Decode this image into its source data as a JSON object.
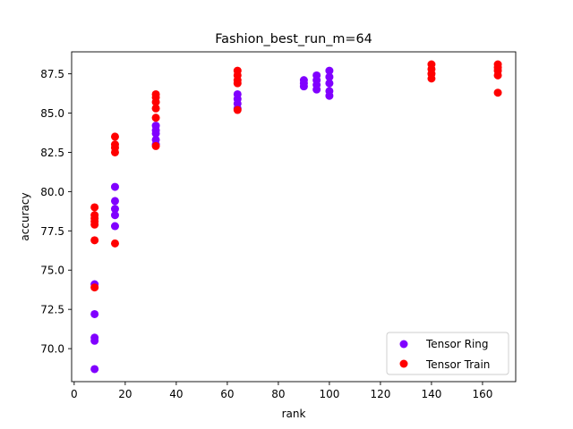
{
  "chart_data": {
    "type": "scatter",
    "title": "Fashion_best_run_m=64",
    "xlabel": "rank",
    "ylabel": "accuracy",
    "xlim": [
      -1,
      173
    ],
    "ylim": [
      67.9,
      88.9
    ],
    "xticks": [
      0,
      20,
      40,
      60,
      80,
      100,
      120,
      140,
      160
    ],
    "yticks": [
      70.0,
      72.5,
      75.0,
      77.5,
      80.0,
      82.5,
      85.0,
      87.5
    ],
    "grid": false,
    "legend_position": "lower right",
    "series": [
      {
        "name": "Tensor Ring",
        "color": "#8000ff",
        "points": [
          [
            8,
            74.1
          ],
          [
            8,
            72.2
          ],
          [
            8,
            70.7
          ],
          [
            8,
            70.5
          ],
          [
            8,
            68.7
          ],
          [
            16,
            80.3
          ],
          [
            16,
            79.4
          ],
          [
            16,
            78.9
          ],
          [
            16,
            78.5
          ],
          [
            16,
            77.8
          ],
          [
            32,
            84.2
          ],
          [
            32,
            83.9
          ],
          [
            32,
            83.7
          ],
          [
            32,
            83.3
          ],
          [
            32,
            83.0
          ],
          [
            64,
            86.2
          ],
          [
            64,
            85.9
          ],
          [
            64,
            85.6
          ],
          [
            64,
            85.3
          ],
          [
            90,
            87.1
          ],
          [
            90,
            86.9
          ],
          [
            90,
            86.7
          ],
          [
            95,
            87.4
          ],
          [
            95,
            87.1
          ],
          [
            95,
            86.8
          ],
          [
            95,
            86.5
          ],
          [
            100,
            87.7
          ],
          [
            100,
            87.3
          ],
          [
            100,
            86.9
          ],
          [
            100,
            86.4
          ],
          [
            100,
            86.1
          ]
        ]
      },
      {
        "name": "Tensor Train",
        "color": "#ff0000",
        "points": [
          [
            8,
            79.0
          ],
          [
            8,
            78.5
          ],
          [
            8,
            78.3
          ],
          [
            8,
            78.1
          ],
          [
            8,
            77.9
          ],
          [
            8,
            76.9
          ],
          [
            8,
            73.9
          ],
          [
            16,
            83.5
          ],
          [
            16,
            83.0
          ],
          [
            16,
            82.8
          ],
          [
            16,
            82.5
          ],
          [
            16,
            76.7
          ],
          [
            32,
            86.2
          ],
          [
            32,
            86.0
          ],
          [
            32,
            85.7
          ],
          [
            32,
            85.3
          ],
          [
            32,
            84.7
          ],
          [
            32,
            82.9
          ],
          [
            64,
            87.7
          ],
          [
            64,
            87.4
          ],
          [
            64,
            87.1
          ],
          [
            64,
            86.9
          ],
          [
            64,
            85.2
          ],
          [
            140,
            88.1
          ],
          [
            140,
            87.8
          ],
          [
            140,
            87.5
          ],
          [
            140,
            87.2
          ],
          [
            166,
            88.1
          ],
          [
            166,
            87.9
          ],
          [
            166,
            87.7
          ],
          [
            166,
            87.4
          ],
          [
            166,
            86.3
          ]
        ]
      }
    ]
  }
}
